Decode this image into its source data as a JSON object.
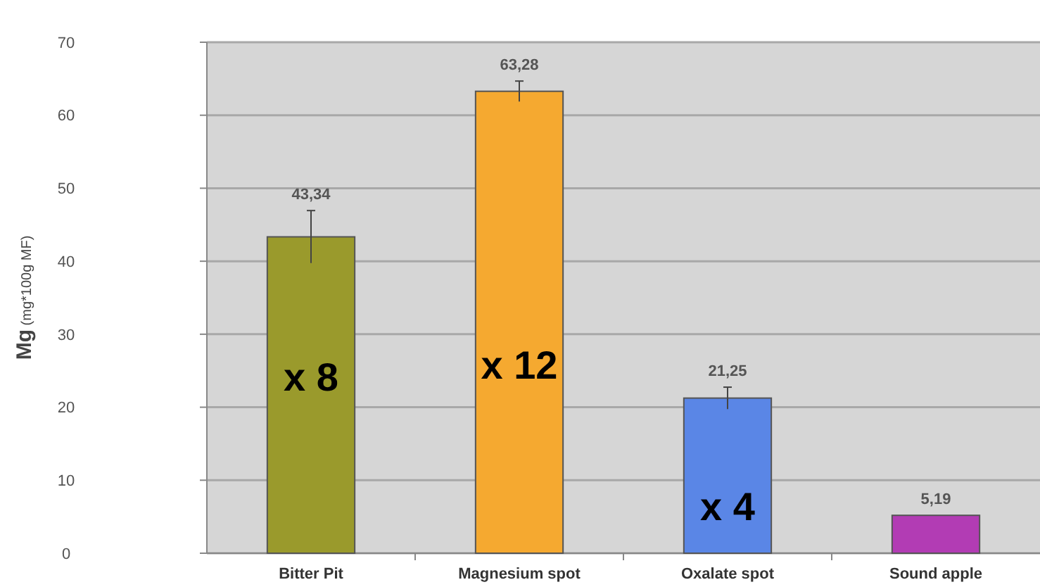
{
  "chart_data": {
    "type": "bar",
    "ylabel": "Mg (mg*100g MF)",
    "categories": [
      "Bitter Pit",
      "Magnesium spot",
      "Oxalate spot",
      "Sound apple"
    ],
    "values": [
      43.34,
      63.28,
      21.25,
      5.19
    ],
    "value_labels": [
      "43,34",
      "63,28",
      "21,25",
      "5,19"
    ],
    "errors": [
      3.6,
      1.4,
      1.5,
      null
    ],
    "colors": [
      "#9a9a2c",
      "#f5a930",
      "#5a86e6",
      "#b23cb4"
    ],
    "ylim": [
      0,
      70
    ],
    "yticks": [
      0,
      10,
      20,
      30,
      40,
      50,
      60,
      70
    ],
    "grid": "y",
    "annotations": [
      "x 8",
      "x 12",
      "x 4"
    ]
  }
}
